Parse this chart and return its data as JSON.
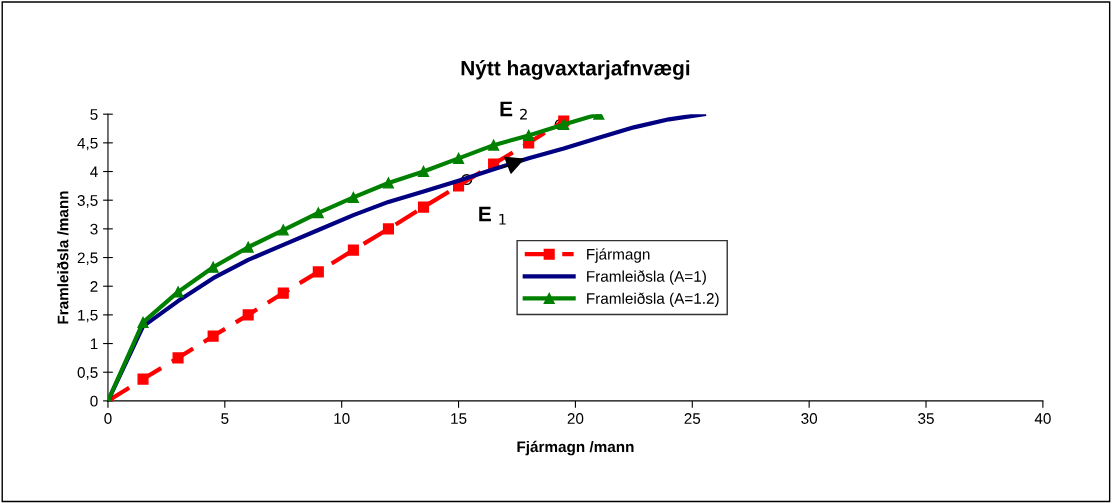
{
  "chart_data": {
    "type": "line",
    "title": "Nýtt hagvaxtarjafnvægi",
    "xlabel": "Fjármagn /mann",
    "ylabel": "Framleiðsla /mann",
    "xlim": [
      0,
      40
    ],
    "xticks": [
      0,
      5,
      10,
      15,
      20,
      25,
      30,
      35,
      40
    ],
    "ylim": [
      0,
      5
    ],
    "yticks": [
      0,
      {
        "value": 0.5,
        "label": "0,5"
      },
      1,
      {
        "value": 1.5,
        "label": "1,5"
      },
      2,
      {
        "value": 2.5,
        "label": "2,5"
      },
      3,
      {
        "value": 3.5,
        "label": "3,5"
      },
      4,
      {
        "value": 4.5,
        "label": "4,5"
      },
      5
    ],
    "grid": false,
    "legend": "right",
    "series": [
      {
        "name": "Fjármagn",
        "color": "#ff0000",
        "marker": "square",
        "line_style": "dashed",
        "x": [
          0,
          1.5,
          3,
          4.5,
          6,
          7.5,
          9,
          10.5,
          12,
          13.5,
          15,
          16.5,
          18,
          19.5
        ],
        "values": [
          0,
          0.38,
          0.75,
          1.13,
          1.5,
          1.88,
          2.25,
          2.63,
          3.0,
          3.38,
          3.75,
          4.13,
          4.5,
          4.88
        ]
      },
      {
        "name": "Framleiðsla (A=1)",
        "color": "#000080",
        "marker": "none",
        "line_style": "solid",
        "x": [
          0,
          1.5,
          3,
          4.5,
          6,
          7.5,
          9,
          10.5,
          12,
          13.5,
          15,
          16.5,
          18,
          19.5,
          21,
          22.5,
          24,
          25.5
        ],
        "values": [
          0,
          1.3,
          1.74,
          2.14,
          2.46,
          2.72,
          2.98,
          3.24,
          3.47,
          3.65,
          3.84,
          4.04,
          4.23,
          4.4,
          4.59,
          4.77,
          4.91,
          5.0
        ]
      },
      {
        "name": "Framleiðsla (A=1.2)",
        "color": "#008000",
        "marker": "triangle",
        "line_style": "solid",
        "x": [
          0,
          1.5,
          3,
          4.5,
          6,
          7.5,
          9,
          10.5,
          12,
          13.5,
          15,
          16.5,
          18,
          19.5,
          21
        ],
        "values": [
          0,
          1.37,
          1.9,
          2.33,
          2.68,
          2.98,
          3.28,
          3.55,
          3.8,
          4.0,
          4.23,
          4.46,
          4.63,
          4.82,
          5.0
        ]
      }
    ],
    "annotations": [
      {
        "text": "E $_{1}$",
        "x": 15.35,
        "y": 3.86
      },
      {
        "text": "E $_{2}$",
        "x": 19.35,
        "y": 4.82
      }
    ]
  }
}
